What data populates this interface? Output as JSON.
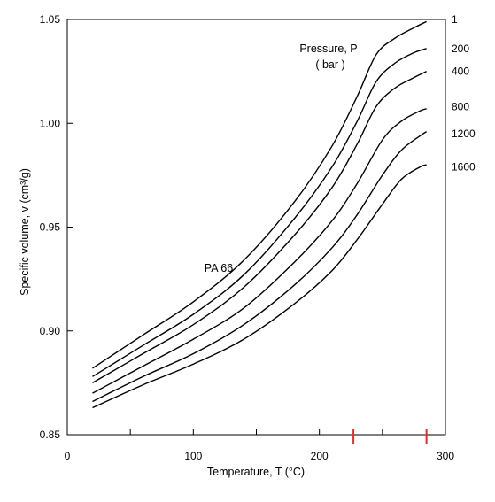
{
  "chart_data": {
    "type": "line",
    "title": "",
    "material_label": "PA 66",
    "legend_title_line1": "Pressure,  P",
    "legend_title_line2": "(  bar  )",
    "xlabel": "Temperature, T  (°C)",
    "ylabel": "Specific volume, v (cm³/g)",
    "xlim": [
      0,
      300
    ],
    "ylim": [
      0.85,
      1.05
    ],
    "x_ticks": [
      0,
      100,
      200,
      300
    ],
    "x_minor_ticks": [
      0,
      50,
      100,
      150,
      200,
      250,
      300
    ],
    "y_ticks": [
      0.85,
      0.9,
      0.95,
      1.0,
      1.05
    ],
    "y_tick_labels": [
      "0.85",
      "0.90",
      "0.95",
      "1.00",
      "1.05"
    ],
    "x_tick_labels": [
      "0",
      "100",
      "200",
      "300"
    ],
    "grid": false,
    "highlight_marks": [
      {
        "x": 227,
        "color": "#d9312b"
      },
      {
        "x": 285,
        "color": "#d9312b"
      }
    ],
    "series": [
      {
        "name": "1",
        "x": [
          20,
          60,
          100,
          140,
          180,
          210,
          230,
          245,
          260,
          275,
          285
        ],
        "y": [
          0.882,
          0.898,
          0.914,
          0.934,
          0.962,
          0.989,
          1.013,
          1.033,
          1.041,
          1.046,
          1.049
        ]
      },
      {
        "name": "200",
        "x": [
          20,
          60,
          100,
          140,
          180,
          210,
          230,
          245,
          260,
          275,
          285
        ],
        "y": [
          0.878,
          0.893,
          0.908,
          0.927,
          0.954,
          0.979,
          1.001,
          1.02,
          1.029,
          1.034,
          1.036
        ]
      },
      {
        "name": "400",
        "x": [
          20,
          60,
          100,
          140,
          180,
          210,
          230,
          245,
          260,
          275,
          285
        ],
        "y": [
          0.875,
          0.889,
          0.903,
          0.921,
          0.946,
          0.969,
          0.99,
          1.008,
          1.017,
          1.022,
          1.025
        ]
      },
      {
        "name": "800",
        "x": [
          20,
          60,
          100,
          140,
          180,
          210,
          230,
          250,
          265,
          280,
          285
        ],
        "y": [
          0.87,
          0.883,
          0.896,
          0.911,
          0.933,
          0.953,
          0.971,
          0.992,
          1.001,
          1.006,
          1.007
        ]
      },
      {
        "name": "1200",
        "x": [
          20,
          60,
          100,
          140,
          180,
          210,
          230,
          250,
          265,
          280,
          285
        ],
        "y": [
          0.866,
          0.878,
          0.889,
          0.903,
          0.922,
          0.94,
          0.956,
          0.975,
          0.987,
          0.994,
          0.996
        ]
      },
      {
        "name": "1600",
        "x": [
          20,
          60,
          100,
          140,
          180,
          210,
          230,
          250,
          265,
          280,
          285
        ],
        "y": [
          0.863,
          0.874,
          0.884,
          0.896,
          0.913,
          0.929,
          0.944,
          0.961,
          0.973,
          0.979,
          0.98
        ]
      }
    ]
  }
}
